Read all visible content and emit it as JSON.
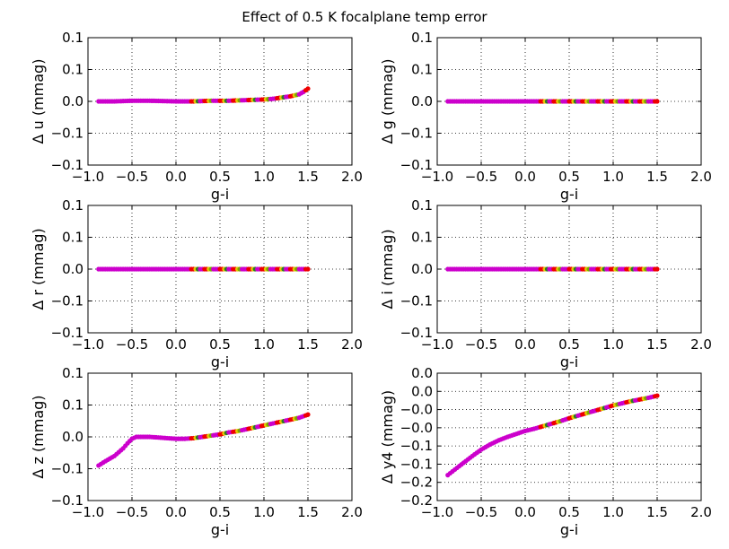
{
  "title": "Effect of 0.5 K focalplane temp error",
  "colors": {
    "background": "#ffffff",
    "axes": "#000000",
    "grid": "#000000",
    "point_palette": [
      "#cc00cc",
      "#ee0000",
      "#e6c800",
      "#77aa00",
      "#2a7a2a",
      "#1f3f99"
    ]
  },
  "chart_data": [
    {
      "type": "scatter",
      "xlabel": "g-i",
      "ylabel": "Δ u (mmag)",
      "xlim": [
        -1.0,
        2.0
      ],
      "ylim": [
        -0.1,
        0.1
      ],
      "xticks": [
        "−1.0",
        "−0.5",
        "0.0",
        "0.5",
        "1.0",
        "1.5",
        "2.0"
      ],
      "yticks": [
        "0.1",
        "0.1",
        "0.0",
        "−0.1",
        "−0.1"
      ],
      "grid": true,
      "series": [
        {
          "x": [
            -0.88,
            -0.7,
            -0.5,
            -0.3,
            0.0,
            0.2,
            0.4,
            0.6,
            0.8,
            1.0,
            1.1,
            1.2,
            1.3,
            1.4,
            1.45,
            1.5
          ],
          "y": [
            0.0,
            0.0,
            0.001,
            0.001,
            0.0,
            0.0,
            0.001,
            0.001,
            0.002,
            0.003,
            0.004,
            0.006,
            0.008,
            0.011,
            0.015,
            0.02
          ]
        }
      ]
    },
    {
      "type": "scatter",
      "xlabel": "g-i",
      "ylabel": "Δ g (mmag)",
      "xlim": [
        -1.0,
        2.0
      ],
      "ylim": [
        -0.1,
        0.1
      ],
      "xticks": [
        "−1.0",
        "−0.5",
        "0.0",
        "0.5",
        "1.0",
        "1.5",
        "2.0"
      ],
      "yticks": [
        "0.1",
        "0.1",
        "0.0",
        "−0.1",
        "−0.1"
      ],
      "grid": true,
      "series": [
        {
          "x": [
            -0.88,
            -0.5,
            0.0,
            0.5,
            1.0,
            1.5
          ],
          "y": [
            0.0,
            0.0,
            0.0,
            0.0,
            0.0,
            0.0
          ]
        }
      ]
    },
    {
      "type": "scatter",
      "xlabel": "g-i",
      "ylabel": "Δ r (mmag)",
      "xlim": [
        -1.0,
        2.0
      ],
      "ylim": [
        -0.1,
        0.1
      ],
      "xticks": [
        "−1.0",
        "−0.5",
        "0.0",
        "0.5",
        "1.0",
        "1.5",
        "2.0"
      ],
      "yticks": [
        "0.1",
        "0.1",
        "0.0",
        "−0.1",
        "−0.1"
      ],
      "grid": true,
      "series": [
        {
          "x": [
            -0.88,
            -0.5,
            0.0,
            0.5,
            1.0,
            1.5
          ],
          "y": [
            0.0,
            0.0,
            0.0,
            0.0,
            0.0,
            0.0
          ]
        }
      ]
    },
    {
      "type": "scatter",
      "xlabel": "g-i",
      "ylabel": "Δ i (mmag)",
      "xlim": [
        -1.0,
        2.0
      ],
      "ylim": [
        -0.1,
        0.1
      ],
      "xticks": [
        "−1.0",
        "−0.5",
        "0.0",
        "0.5",
        "1.0",
        "1.5",
        "2.0"
      ],
      "yticks": [
        "0.1",
        "0.1",
        "0.0",
        "−0.1",
        "−0.1"
      ],
      "grid": true,
      "series": [
        {
          "x": [
            -0.88,
            -0.5,
            0.0,
            0.5,
            1.0,
            1.5
          ],
          "y": [
            0.0,
            0.0,
            0.0,
            0.0,
            0.0,
            0.0
          ]
        }
      ]
    },
    {
      "type": "scatter",
      "xlabel": "g-i",
      "ylabel": "Δ z (mmag)",
      "xlim": [
        -1.0,
        2.0
      ],
      "ylim": [
        -0.1,
        0.1
      ],
      "xticks": [
        "−1.0",
        "−0.5",
        "0.0",
        "0.5",
        "1.0",
        "1.5",
        "2.0"
      ],
      "yticks": [
        "0.1",
        "0.1",
        "0.0",
        "−0.1",
        "−0.1"
      ],
      "grid": true,
      "series": [
        {
          "x": [
            -0.88,
            -0.8,
            -0.7,
            -0.6,
            -0.55,
            -0.5,
            -0.45,
            -0.4,
            -0.3,
            -0.2,
            -0.1,
            0.0,
            0.1,
            0.2,
            0.3,
            0.4,
            0.5,
            0.6,
            0.7,
            0.8,
            0.9,
            1.0,
            1.1,
            1.2,
            1.3,
            1.4,
            1.5
          ],
          "y": [
            -0.045,
            -0.038,
            -0.03,
            -0.018,
            -0.01,
            -0.003,
            0.0,
            0.0,
            0.0,
            -0.001,
            -0.002,
            -0.003,
            -0.003,
            -0.002,
            0.0,
            0.002,
            0.004,
            0.007,
            0.009,
            0.012,
            0.015,
            0.018,
            0.021,
            0.024,
            0.027,
            0.03,
            0.035
          ]
        }
      ]
    },
    {
      "type": "scatter",
      "xlabel": "g-i",
      "ylabel": "Δ y4 (mmag)",
      "xlim": [
        -1.0,
        2.0
      ],
      "ylim": [
        -0.2,
        0.1
      ],
      "xticks": [
        "−1.0",
        "−0.5",
        "0.0",
        "0.5",
        "1.0",
        "1.5",
        "2.0"
      ],
      "yticks": [
        "0.0",
        "0.0",
        "−0.0",
        "−0.0",
        "−0.1",
        "−0.1",
        "−0.2",
        "−0.2"
      ],
      "grid": true,
      "series": [
        {
          "x": [
            -0.88,
            -0.8,
            -0.7,
            -0.6,
            -0.5,
            -0.4,
            -0.3,
            -0.2,
            -0.1,
            0.0,
            0.1,
            0.2,
            0.3,
            0.4,
            0.5,
            0.6,
            0.7,
            0.8,
            0.9,
            1.0,
            1.1,
            1.2,
            1.3,
            1.4,
            1.5
          ],
          "y": [
            -0.14,
            -0.127,
            -0.111,
            -0.095,
            -0.08,
            -0.068,
            -0.058,
            -0.05,
            -0.043,
            -0.036,
            -0.031,
            -0.025,
            -0.019,
            -0.013,
            -0.006,
            0.0,
            0.006,
            0.012,
            0.018,
            0.024,
            0.029,
            0.034,
            0.038,
            0.042,
            0.047
          ]
        }
      ]
    }
  ]
}
